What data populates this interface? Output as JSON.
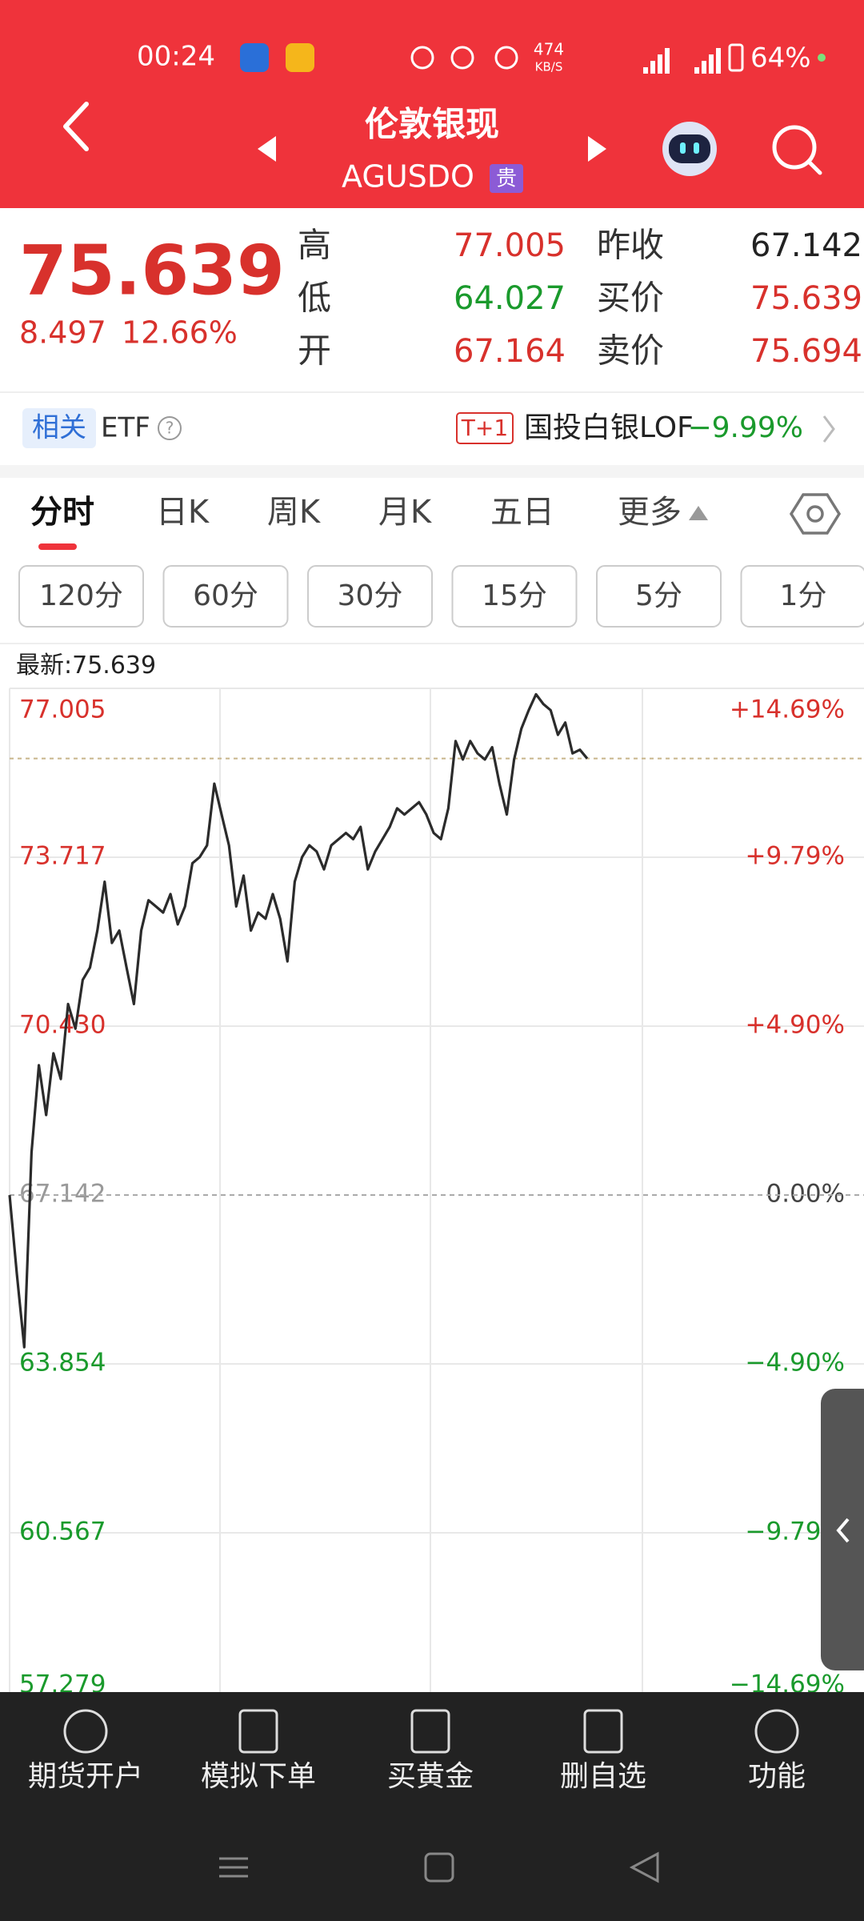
{
  "status": {
    "time": "00:24",
    "speed": "474",
    "speed_unit": "KB/S",
    "battery": "64%"
  },
  "header": {
    "title": "伦敦银现",
    "code": "AGUSDO",
    "badge": "贵"
  },
  "quote": {
    "price": "75.639",
    "change": "8.497",
    "change_pct": "12.66%",
    "rows": [
      [
        "高",
        "77.005",
        "昨收",
        "67.142"
      ],
      [
        "低",
        "64.027",
        "买价",
        "75.639"
      ],
      [
        "开",
        "67.164",
        "卖价",
        "75.694"
      ]
    ],
    "value_colors": [
      [
        "#d8312c",
        "#222222"
      ],
      [
        "#1a9a2c",
        "#d8312c"
      ],
      [
        "#d8312c",
        "#d8312c"
      ]
    ]
  },
  "etf": {
    "tag": "相关",
    "label": "ETF",
    "help": "?",
    "badge": "T+1",
    "name": "国投白银LOF",
    "change": "−9.99%"
  },
  "tabs": [
    "分时",
    "日K",
    "周K",
    "月K",
    "五日",
    "更多"
  ],
  "periods": [
    "120分",
    "60分",
    "30分",
    "15分",
    "5分",
    "1分"
  ],
  "chart": {
    "type": "line",
    "latest_label": "最新:",
    "last": 75.639,
    "base": 67.142,
    "color": "#2b2b2b",
    "ylim": [
      57.279,
      77.005
    ],
    "yticks": [
      77.005,
      73.717,
      {
        "value": 70.43,
        "label": "70.430"
      },
      67.142,
      63.854,
      60.567,
      57.279
    ],
    "yticks_right": [
      {
        "value": 77.005,
        "label": "+14.69%"
      },
      {
        "value": 73.717,
        "label": "+9.79%"
      },
      {
        "value": 70.43,
        "label": "+4.90%"
      },
      {
        "value": 67.142,
        "label": "0.00%"
      },
      {
        "value": 63.854,
        "label": "−4.90%"
      },
      {
        "value": 60.567,
        "label": "−9.79%"
      },
      {
        "value": 57.279,
        "label": "−14.69%"
      }
    ],
    "values": [
      67.14,
      65.6,
      64.18,
      67.97,
      69.67,
      68.7,
      69.9,
      69.4,
      70.86,
      70.38,
      71.33,
      71.57,
      72.29,
      73.24,
      72.05,
      72.29,
      71.57,
      70.86,
      72.29,
      72.88,
      72.76,
      72.64,
      73.0,
      72.41,
      72.76,
      73.6,
      73.72,
      73.95,
      75.15,
      74.55,
      73.95,
      72.76,
      73.36,
      72.29,
      72.64,
      72.52,
      73.0,
      72.52,
      71.69,
      73.24,
      73.72,
      73.95,
      73.83,
      73.48,
      73.95,
      74.07,
      74.19,
      74.07,
      74.31,
      73.48,
      73.83,
      74.07,
      74.31,
      74.67,
      74.55,
      74.67,
      74.79,
      74.55,
      74.19,
      74.07,
      74.67,
      75.98,
      75.62,
      75.98,
      75.74,
      75.62,
      75.86,
      75.15,
      74.55,
      75.62,
      76.22,
      76.58,
      76.89,
      76.7,
      76.58,
      76.1,
      76.34,
      75.74,
      75.81,
      75.639
    ]
  },
  "nav": [
    "期货开户",
    "模拟下单",
    "买黄金",
    "删自选",
    "功能"
  ]
}
